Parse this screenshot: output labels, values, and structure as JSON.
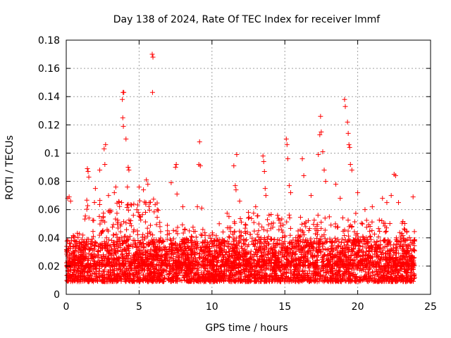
{
  "chart_data": {
    "type": "scatter",
    "title": "Day 138 of 2024, Rate Of TEC Index for receiver lmmf",
    "xlabel": "GPS time / hours",
    "ylabel": "ROTI / TECUs",
    "xlim": [
      0,
      25
    ],
    "ylim": [
      0,
      0.18
    ],
    "xticks": [
      "0",
      "5",
      "10",
      "15",
      "20",
      "25"
    ],
    "yticks": [
      "0",
      "0.02",
      "0.04",
      "0.06",
      "0.08",
      "0.1",
      "0.12",
      "0.14",
      "0.16",
      "0.18"
    ],
    "grid": true,
    "marker": "+",
    "color": "#ff0000",
    "baseline_band": [
      0.005,
      0.035
    ],
    "points": [
      [
        0.1,
        0.068
      ],
      [
        0.2,
        0.069
      ],
      [
        0.3,
        0.066
      ],
      [
        1.45,
        0.089
      ],
      [
        1.5,
        0.087
      ],
      [
        1.55,
        0.083
      ],
      [
        2.0,
        0.075
      ],
      [
        2.3,
        0.088
      ],
      [
        2.6,
        0.103
      ],
      [
        2.7,
        0.106
      ],
      [
        2.65,
        0.092
      ],
      [
        2.9,
        0.07
      ],
      [
        3.3,
        0.072
      ],
      [
        3.4,
        0.076
      ],
      [
        3.8,
        0.065
      ],
      [
        3.85,
        0.138
      ],
      [
        3.9,
        0.143
      ],
      [
        3.95,
        0.143
      ],
      [
        3.88,
        0.125
      ],
      [
        3.92,
        0.119
      ],
      [
        4.1,
        0.11
      ],
      [
        4.25,
        0.09
      ],
      [
        4.3,
        0.088
      ],
      [
        4.2,
        0.076
      ],
      [
        5.0,
        0.076
      ],
      [
        5.3,
        0.074
      ],
      [
        5.5,
        0.081
      ],
      [
        5.6,
        0.078
      ],
      [
        5.7,
        0.065
      ],
      [
        5.9,
        0.17
      ],
      [
        5.95,
        0.168
      ],
      [
        5.92,
        0.143
      ],
      [
        7.2,
        0.079
      ],
      [
        7.5,
        0.09
      ],
      [
        7.55,
        0.092
      ],
      [
        7.6,
        0.071
      ],
      [
        8.0,
        0.062
      ],
      [
        9.0,
        0.062
      ],
      [
        9.1,
        0.092
      ],
      [
        9.15,
        0.108
      ],
      [
        9.2,
        0.091
      ],
      [
        9.3,
        0.061
      ],
      [
        10.5,
        0.05
      ],
      [
        11.5,
        0.091
      ],
      [
        11.6,
        0.077
      ],
      [
        11.7,
        0.099
      ],
      [
        11.65,
        0.074
      ],
      [
        11.9,
        0.066
      ],
      [
        12.5,
        0.058
      ],
      [
        13.0,
        0.062
      ],
      [
        13.5,
        0.098
      ],
      [
        13.55,
        0.094
      ],
      [
        13.6,
        0.087
      ],
      [
        13.65,
        0.075
      ],
      [
        13.7,
        0.07
      ],
      [
        14.5,
        0.056
      ],
      [
        15.1,
        0.11
      ],
      [
        15.15,
        0.106
      ],
      [
        15.2,
        0.096
      ],
      [
        15.3,
        0.077
      ],
      [
        15.4,
        0.072
      ],
      [
        16.2,
        0.096
      ],
      [
        16.3,
        0.084
      ],
      [
        16.8,
        0.07
      ],
      [
        17.3,
        0.099
      ],
      [
        17.4,
        0.113
      ],
      [
        17.45,
        0.126
      ],
      [
        17.5,
        0.115
      ],
      [
        17.6,
        0.101
      ],
      [
        17.7,
        0.088
      ],
      [
        17.8,
        0.08
      ],
      [
        18.5,
        0.078
      ],
      [
        18.8,
        0.068
      ],
      [
        19.1,
        0.138
      ],
      [
        19.15,
        0.133
      ],
      [
        19.3,
        0.122
      ],
      [
        19.35,
        0.114
      ],
      [
        19.4,
        0.106
      ],
      [
        19.45,
        0.104
      ],
      [
        19.5,
        0.092
      ],
      [
        19.6,
        0.088
      ],
      [
        20.0,
        0.072
      ],
      [
        20.5,
        0.06
      ],
      [
        21.0,
        0.062
      ],
      [
        21.7,
        0.068
      ],
      [
        22.0,
        0.065
      ],
      [
        22.3,
        0.07
      ],
      [
        22.5,
        0.085
      ],
      [
        22.6,
        0.084
      ],
      [
        22.8,
        0.065
      ],
      [
        23.8,
        0.069
      ]
    ]
  }
}
